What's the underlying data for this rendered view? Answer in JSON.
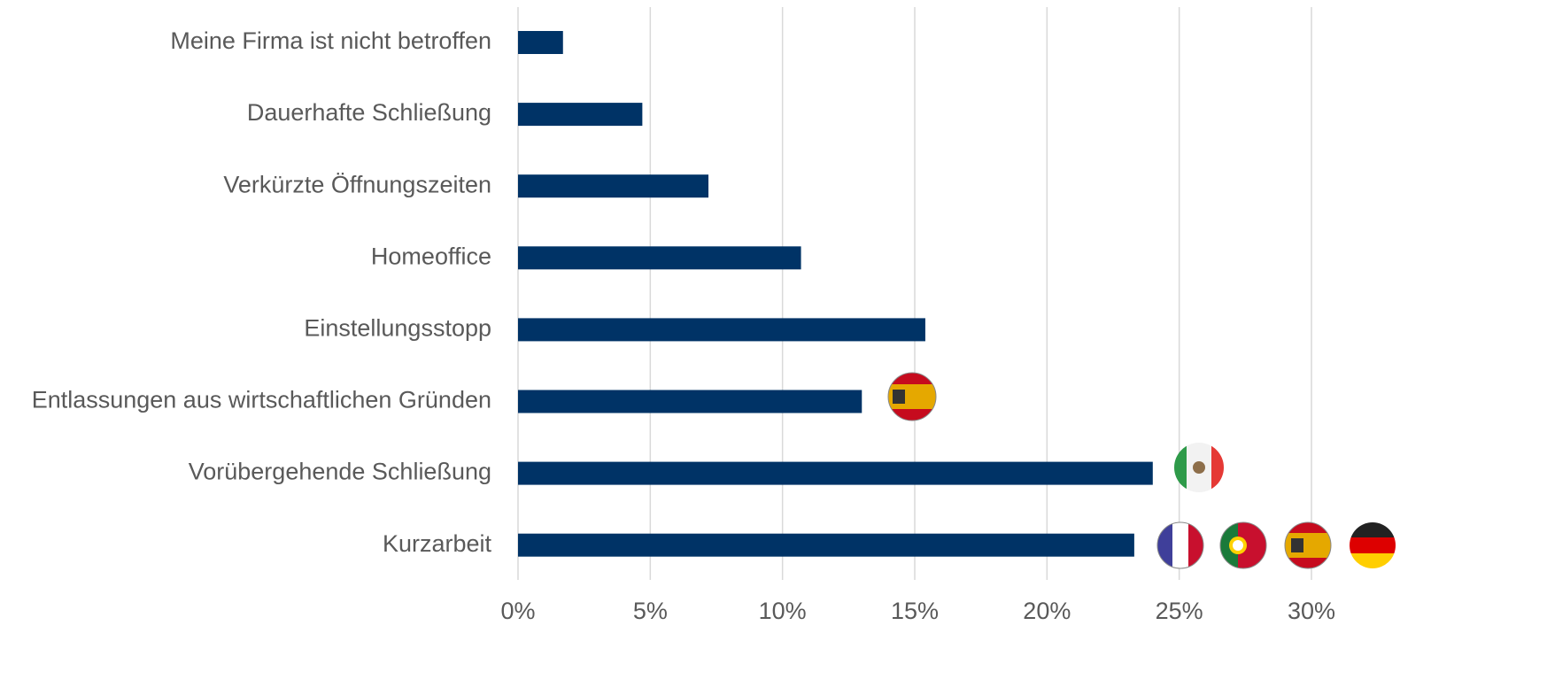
{
  "chart_data": {
    "type": "barh",
    "categories": [
      "Meine Firma ist nicht betroffen",
      "Dauerhafte Schließung",
      "Verkürzte Öffnungszeiten",
      "Homeoffice",
      "Einstellungsstopp",
      "Entlassungen aus wirtschaftlichen Gründen",
      "Vorübergehende Schließung",
      "Kurzarbeit"
    ],
    "values": [
      1.7,
      4.7,
      7.2,
      10.7,
      15.4,
      13.0,
      24.0,
      23.3
    ],
    "color": "#003366",
    "xlim": [
      0,
      30
    ],
    "xticks": [
      {
        "value": 0,
        "label": "0%"
      },
      {
        "value": 5,
        "label": "5%"
      },
      {
        "value": 10,
        "label": "10%"
      },
      {
        "value": 15,
        "label": "15%"
      },
      {
        "value": 20,
        "label": "20%"
      },
      {
        "value": 25,
        "label": "25%"
      },
      {
        "value": 30,
        "label": "30%"
      }
    ],
    "grid": true
  }
}
